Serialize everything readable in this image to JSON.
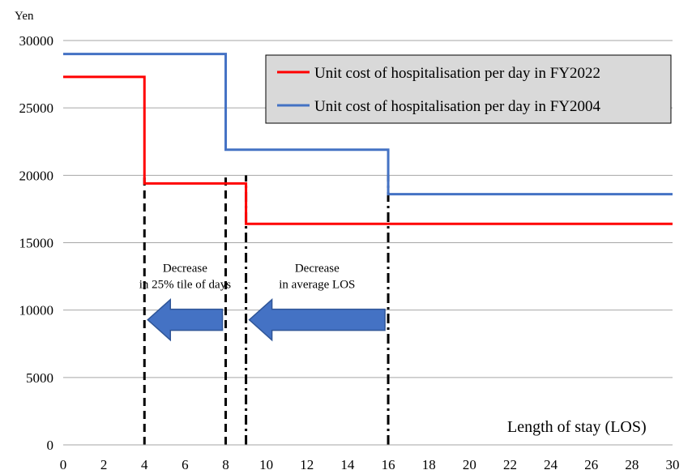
{
  "chart_data": {
    "type": "line",
    "ylabel": "Yen",
    "xlabel": "Length of stay (LOS)",
    "xlim": [
      0,
      30
    ],
    "ylim": [
      0,
      30000
    ],
    "x_ticks": [
      0,
      2,
      4,
      6,
      8,
      10,
      12,
      14,
      16,
      18,
      20,
      22,
      24,
      26,
      28,
      30
    ],
    "y_ticks": [
      0,
      5000,
      10000,
      15000,
      20000,
      25000,
      30000
    ],
    "grid": "horizontal",
    "legend_position": "top-right",
    "series": [
      {
        "name": "Unit cost of hospitalisation per day in FY2022",
        "color": "#ff0000",
        "step": true,
        "points": [
          [
            0,
            27300
          ],
          [
            4,
            27300
          ],
          [
            4,
            19400
          ],
          [
            9,
            19400
          ],
          [
            9,
            16400
          ],
          [
            30,
            16400
          ]
        ]
      },
      {
        "name": "Unit cost of hospitalisation per day in FY2004",
        "color": "#4472c4",
        "step": true,
        "points": [
          [
            0,
            29000
          ],
          [
            8,
            29000
          ],
          [
            8,
            21900
          ],
          [
            16,
            21900
          ],
          [
            16,
            18600
          ],
          [
            30,
            18600
          ]
        ]
      }
    ],
    "vertical_markers": [
      {
        "x": 4,
        "style": "dashed"
      },
      {
        "x": 8,
        "style": "dashed"
      },
      {
        "x": 9,
        "style": "dashdot"
      },
      {
        "x": 16,
        "style": "dashdot"
      }
    ],
    "annotations": [
      {
        "lines": [
          "Decrease",
          "in 25% tile of days"
        ],
        "arrow_from_x": 8,
        "arrow_to_x": 4,
        "arrow_y": 10000
      },
      {
        "lines": [
          "Decrease",
          "in average LOS"
        ],
        "arrow_from_x": 16,
        "arrow_to_x": 9,
        "arrow_y": 10000
      }
    ],
    "colors": {
      "arrow_fill": "#4472c4",
      "arrow_stroke": "#2f5597",
      "legend_bg": "#d9d9d9",
      "grid": "#a6a6a6"
    }
  }
}
